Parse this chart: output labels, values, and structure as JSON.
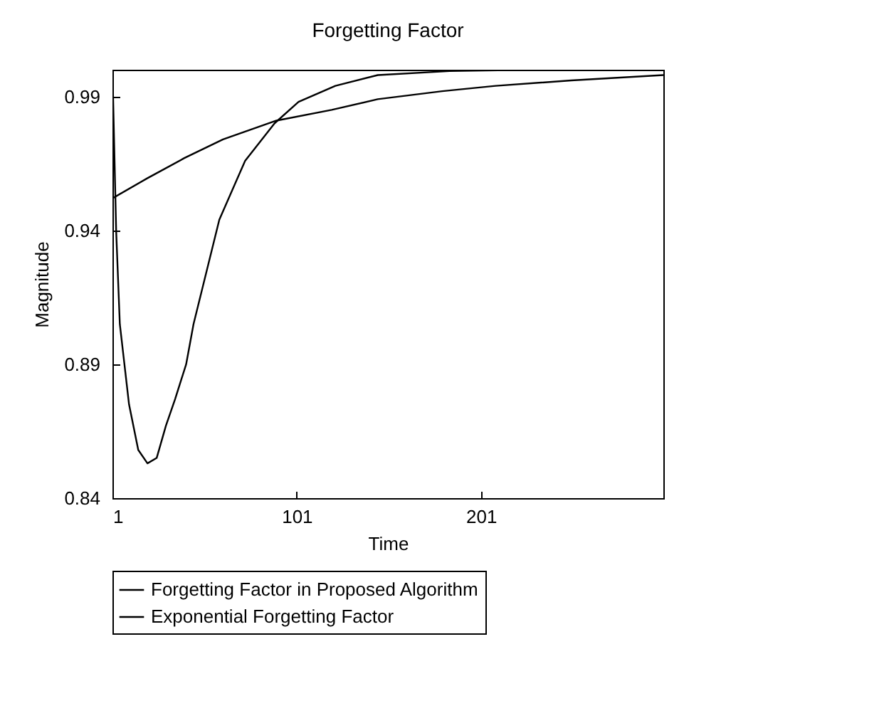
{
  "chart_data": {
    "type": "line",
    "title": "Forgetting Factor",
    "xlabel": "Time",
    "ylabel": "Magnitude",
    "xlim": [
      1,
      300
    ],
    "xticks": [
      1,
      101,
      201
    ],
    "ylim": [
      0.84,
      1.0
    ],
    "yticks": [
      0.84,
      0.89,
      0.94,
      0.99
    ],
    "grid": false,
    "legend": "bottom",
    "series": [
      {
        "name": "Forgetting Factor in Proposed Algorithm",
        "color": "#000000",
        "x": [
          1,
          3,
          5,
          10,
          15,
          20,
          25,
          30,
          35,
          41,
          45,
          59,
          73,
          89,
          102,
          122,
          145,
          184,
          230,
          300
        ],
        "values": [
          1.0,
          0.94,
          0.905,
          0.875,
          0.858,
          0.853,
          0.855,
          0.867,
          0.877,
          0.89,
          0.905,
          0.944,
          0.966,
          0.98,
          0.988,
          0.994,
          0.998,
          0.9995,
          1.0,
          1.0
        ]
      },
      {
        "name": "Exponential Forgetting Factor",
        "color": "#000000",
        "x": [
          1,
          20,
          40,
          61,
          90,
          120,
          145,
          180,
          209,
          250,
          300
        ],
        "values": [
          0.952,
          0.9595,
          0.967,
          0.974,
          0.981,
          0.985,
          0.989,
          0.992,
          0.994,
          0.996,
          0.998
        ]
      }
    ]
  }
}
